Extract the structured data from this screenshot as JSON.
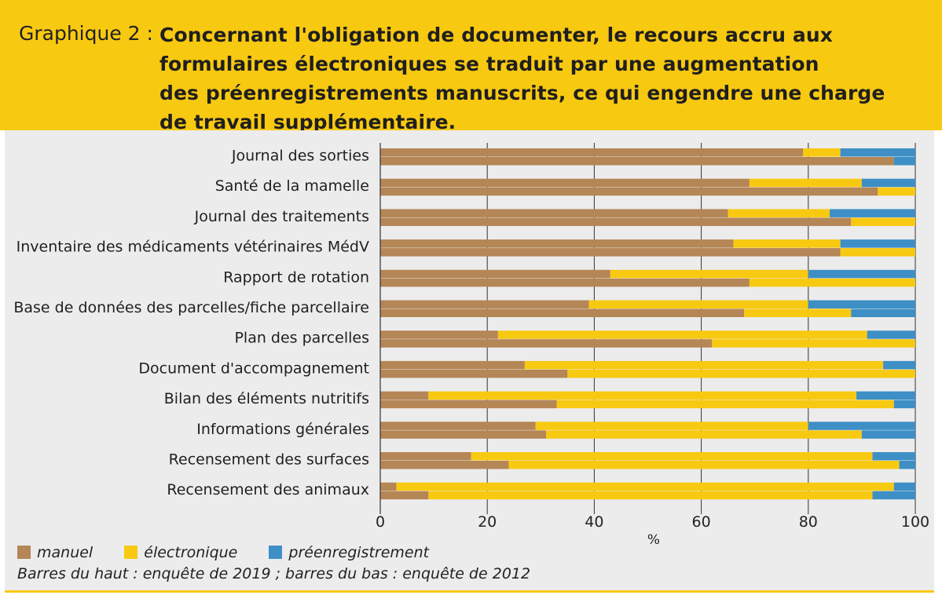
{
  "header": {
    "label": "Graphique 2 :",
    "title_lines": [
      "Concernant l'obligation de documenter, le recours accru aux",
      "formulaires électroniques se traduit par une augmentation",
      "des préenregistrements manuscrits, ce qui engendre une charge",
      "de travail supplémentaire."
    ]
  },
  "legend": {
    "manuel": "manuel",
    "electronique": "électronique",
    "preenregistrement": "préenregistrement"
  },
  "note": "Barres du haut : enquête de 2019 ; barres du bas : enquête de 2012",
  "colors": {
    "manuel": "#b58656",
    "electronique": "#f8c911",
    "preenregistrement": "#3d8fc6",
    "header_bg": "#f8c911",
    "panel_bg": "#ececec"
  },
  "chart_data": {
    "type": "bar",
    "orientation": "horizontal",
    "stacked": true,
    "title": "",
    "xlabel": "%",
    "ylabel": "",
    "xlim": [
      0,
      100
    ],
    "xticks": [
      0,
      20,
      40,
      60,
      80,
      100
    ],
    "grid": true,
    "categories": [
      "Journal des sorties",
      "Santé de la mamelle",
      "Journal des traitements",
      "Inventaire des médicaments vétérinaires MédV",
      "Rapport de rotation",
      "Base de données des parcelles/fiche parcellaire",
      "Plan des parcelles",
      "Document d'accompagnement",
      "Bilan des éléments nutritifs",
      "Informations générales",
      "Recensement des surfaces",
      "Recensement des animaux"
    ],
    "series_keys": [
      "manuel",
      "electronique",
      "preenregistrement"
    ],
    "surveys": [
      {
        "name": "2019",
        "position": "top",
        "manuel": [
          79,
          69,
          65,
          66,
          43,
          39,
          22,
          27,
          9,
          29,
          17,
          3
        ],
        "electronique": [
          7,
          21,
          19,
          20,
          37,
          41,
          69,
          67,
          80,
          51,
          75,
          93
        ],
        "preenregistrement": [
          14,
          10,
          16,
          14,
          20,
          20,
          9,
          6,
          11,
          20,
          8,
          4
        ]
      },
      {
        "name": "2012",
        "position": "bottom",
        "manuel": [
          96,
          93,
          88,
          86,
          69,
          68,
          62,
          35,
          33,
          31,
          24,
          9
        ],
        "electronique": [
          0,
          7,
          12,
          14,
          31,
          20,
          38,
          65,
          63,
          59,
          73,
          83
        ],
        "preenregistrement": [
          4,
          0,
          0,
          0,
          0,
          12,
          0,
          0,
          4,
          10,
          3,
          8
        ]
      }
    ]
  }
}
